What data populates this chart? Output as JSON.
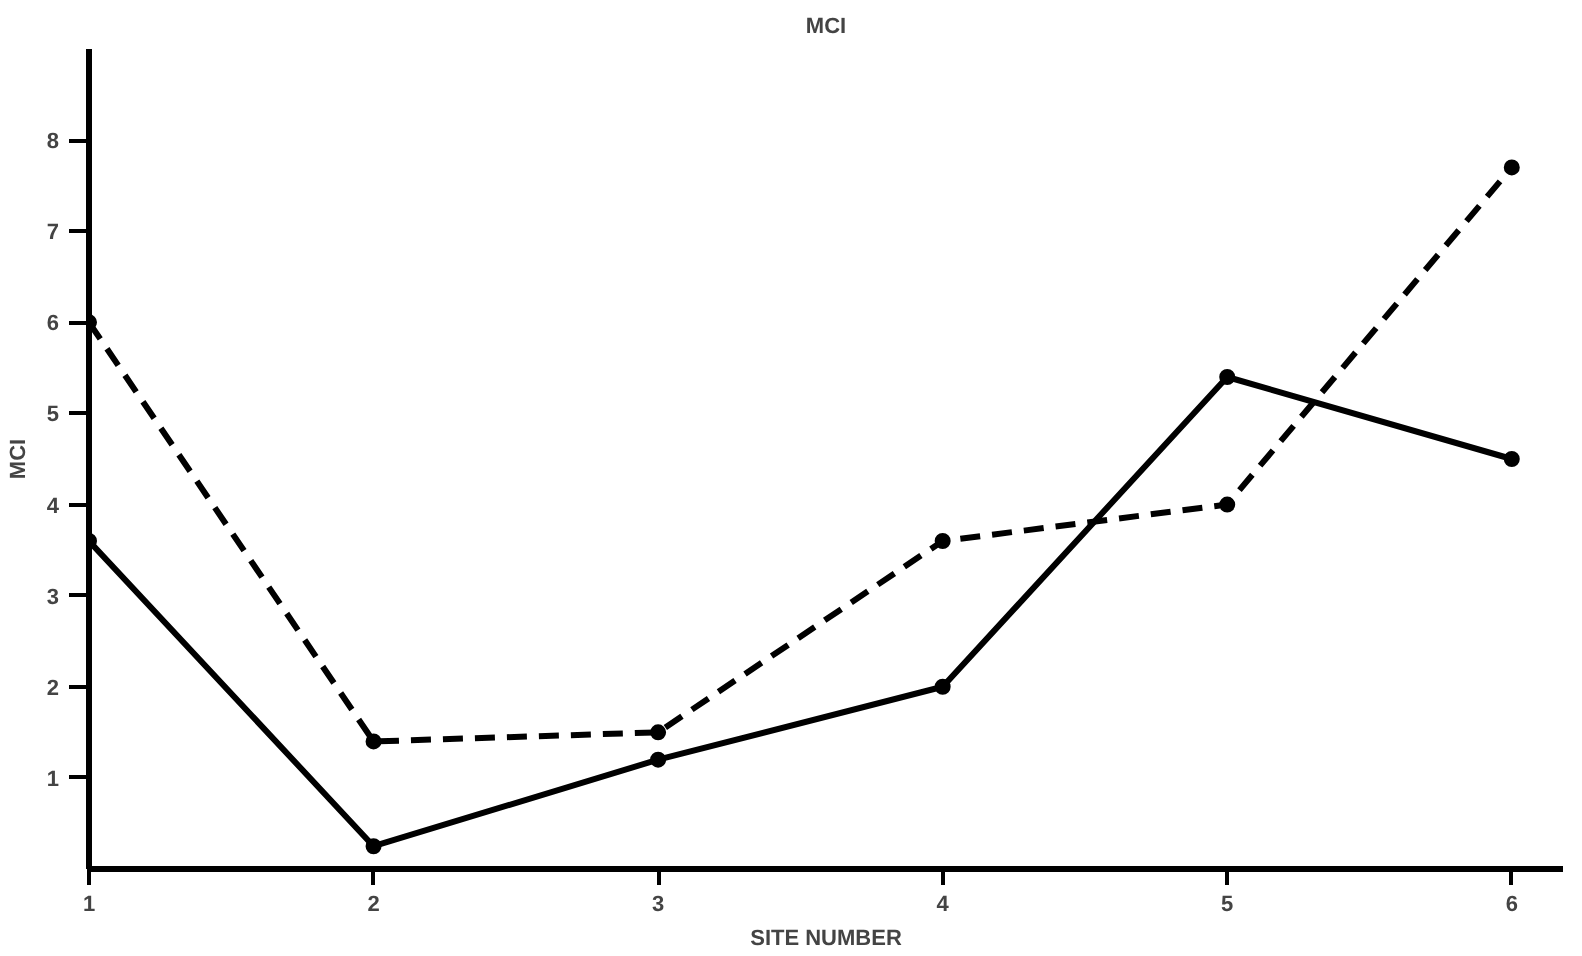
{
  "chart_data": {
    "type": "line",
    "title": "MCI",
    "xlabel": "SITE NUMBER",
    "ylabel": "MCI",
    "x": [
      1,
      2,
      3,
      4,
      5,
      6
    ],
    "series": [
      {
        "color": "#000000",
        "line_style": "solid",
        "values": [
          3.6,
          0.25,
          1.2,
          2.0,
          5.4,
          4.5
        ]
      },
      {
        "color": "#000000",
        "line_style": "dashed",
        "values": [
          6.0,
          1.4,
          1.5,
          3.6,
          4.0,
          7.7
        ]
      }
    ],
    "marker": "circle",
    "grid": false,
    "xlim": [
      1,
      6.18
    ],
    "ylim": [
      0,
      9
    ],
    "xticks": [
      1,
      2,
      3,
      4,
      5,
      6
    ],
    "yticks": [
      1,
      2,
      3,
      4,
      5,
      6,
      7,
      8
    ]
  }
}
